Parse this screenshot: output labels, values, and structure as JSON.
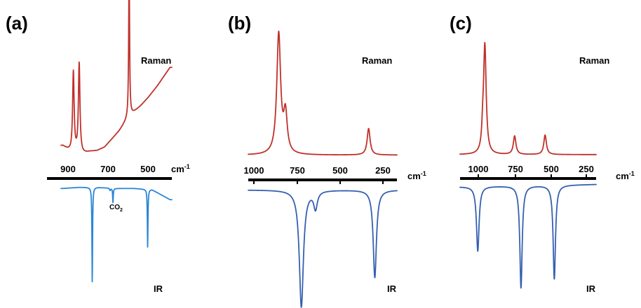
{
  "colors": {
    "raman": "#c0302a",
    "ir_a": "#2a86d6",
    "ir_bc": "#3560b0",
    "axis": "#000000"
  },
  "chart_data": [
    {
      "type": "line",
      "panel": "(a)",
      "xlabel": "cm-1",
      "xticks": [
        "900",
        "700",
        "500"
      ],
      "x_direction": "decreasing",
      "xlim": [
        1000,
        390
      ],
      "series_labels": {
        "raman": "Raman",
        "ir": "IR"
      },
      "annotations": [
        {
          "text": "CO2",
          "x": 705
        }
      ],
      "raman": {
        "baseline": [
          [
            990,
            0.1
          ],
          [
            940,
            0.04
          ],
          [
            880,
            0.03
          ],
          [
            840,
            0.05
          ],
          [
            800,
            0.06
          ],
          [
            760,
            0.09
          ],
          [
            720,
            0.16
          ],
          [
            680,
            0.23
          ],
          [
            640,
            0.32
          ],
          [
            600,
            0.39
          ],
          [
            560,
            0.45
          ],
          [
            520,
            0.52
          ],
          [
            470,
            0.62
          ],
          [
            400,
            0.78
          ]
        ],
        "peaks": [
          [
            932,
            0.7,
            5
          ],
          [
            900,
            0.78,
            5
          ],
          [
            625,
            1.28,
            3
          ]
        ]
      },
      "ir": {
        "baseline": [
          [
            990,
            0.02
          ],
          [
            900,
            0.01
          ],
          [
            800,
            0.01
          ],
          [
            700,
            0.02
          ],
          [
            600,
            0.02
          ],
          [
            500,
            0.03
          ],
          [
            400,
            0.12
          ]
        ],
        "peaks": [
          [
            828,
            0.85,
            2
          ],
          [
            730,
            0.02,
            3
          ],
          [
            714,
            0.13,
            2
          ],
          [
            523,
            0.52,
            2
          ]
        ]
      }
    },
    {
      "type": "line",
      "panel": "(b)",
      "xlabel": "cm-1",
      "xticks": [
        "1000",
        "750",
        "500",
        "250"
      ],
      "x_direction": "decreasing",
      "xlim": [
        1010,
        170
      ],
      "series_labels": {
        "raman": "Raman",
        "ir": "IR"
      },
      "raman": {
        "baseline": [
          [
            1010,
            0.02
          ],
          [
            170,
            0.02
          ]
        ],
        "peaks": [
          [
            838,
            1.0,
            13
          ],
          [
            800,
            0.32,
            12
          ],
          [
            330,
            0.22,
            10
          ]
        ]
      },
      "ir": {
        "baseline": [
          [
            1010,
            0.02
          ],
          [
            170,
            0.02
          ]
        ],
        "peaks": [
          [
            710,
            1.0,
            14
          ],
          [
            630,
            0.15,
            12
          ],
          [
            295,
            0.75,
            11
          ]
        ]
      }
    },
    {
      "type": "line",
      "panel": "(c)",
      "xlabel": "cm-1",
      "xticks": [
        "1000",
        "750",
        "500",
        "250"
      ],
      "x_direction": "decreasing",
      "xlim": [
        1130,
        170
      ],
      "series_labels": {
        "raman": "Raman",
        "ir": "IR"
      },
      "raman": {
        "baseline": [
          [
            1130,
            0.02
          ],
          [
            170,
            0.02
          ]
        ],
        "peaks": [
          [
            955,
            1.0,
            11
          ],
          [
            970,
            0.15,
            8
          ],
          [
            745,
            0.17,
            11
          ],
          [
            530,
            0.18,
            11
          ]
        ]
      },
      "ir": {
        "baseline": [
          [
            1130,
            0.04
          ],
          [
            170,
            0.02
          ]
        ],
        "peaks": [
          [
            1005,
            0.55,
            11
          ],
          [
            700,
            0.87,
            10
          ],
          [
            465,
            0.8,
            10
          ]
        ]
      }
    }
  ]
}
